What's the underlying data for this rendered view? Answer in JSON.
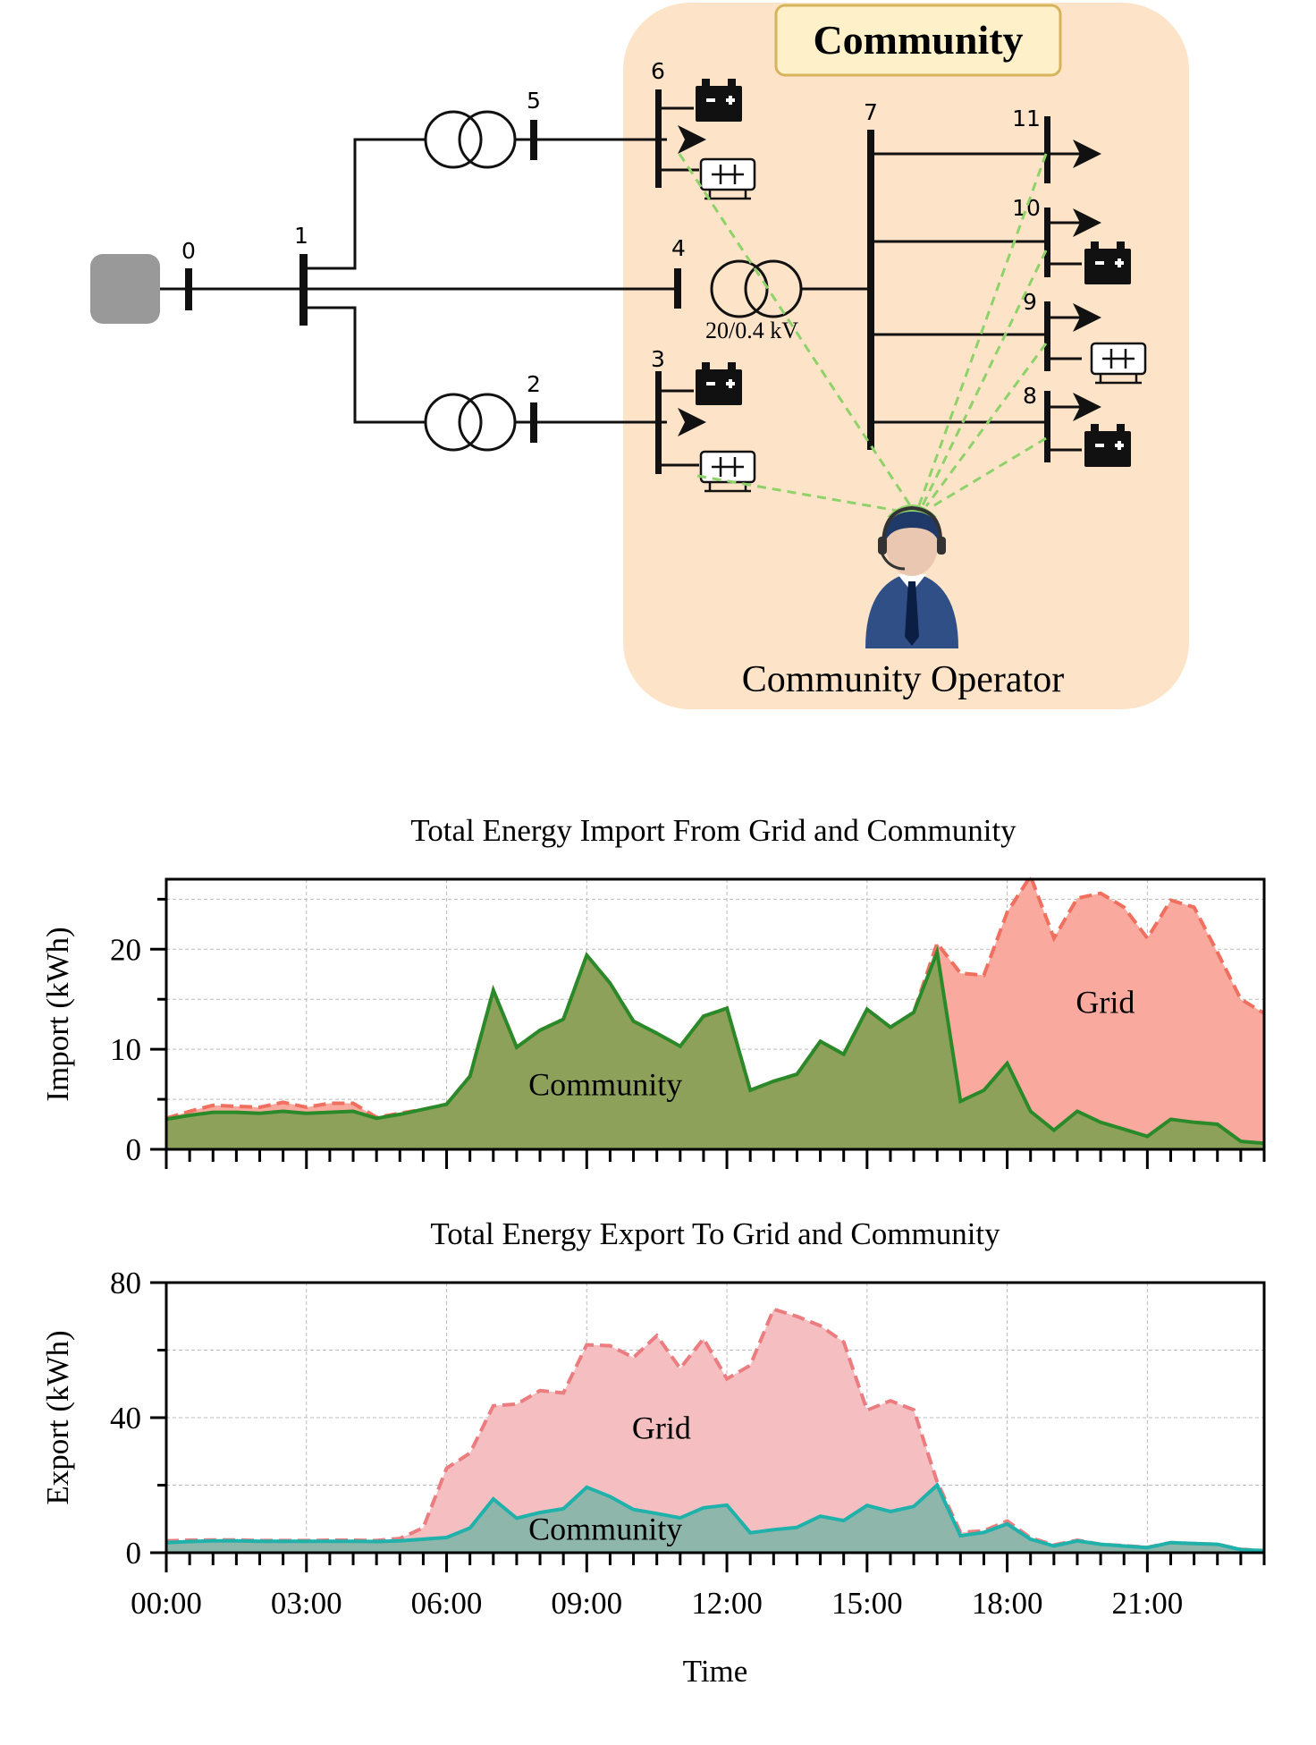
{
  "diagram": {
    "community_label": "Community",
    "operator_label": "Community Operator",
    "transformer_label": "20/0.4 kV",
    "bus_labels": [
      "0",
      "1",
      "2",
      "3",
      "4",
      "5",
      "6",
      "7",
      "8",
      "9",
      "10",
      "11"
    ],
    "colors": {
      "community_bg": "#fde3c7",
      "label_box_bg": "#fef1c9",
      "label_box_border": "#d6b45e",
      "comm_link": "#8fd26a",
      "grid_source": "#999999"
    }
  },
  "chart_data": [
    {
      "type": "area",
      "title": "Total Energy Import From Grid and Community",
      "ylabel": "Import (kWh)",
      "xlabel": "",
      "ylim": [
        0,
        27
      ],
      "yticks": [
        0,
        10,
        20
      ],
      "x_hours": [
        0,
        0.5,
        1,
        1.5,
        2,
        2.5,
        3,
        3.5,
        4,
        4.5,
        5,
        5.5,
        6,
        6.5,
        7,
        7.5,
        8,
        8.5,
        9,
        9.5,
        10,
        10.5,
        11,
        11.5,
        12,
        12.5,
        13,
        13.5,
        14,
        14.5,
        15,
        15.5,
        16,
        16.5,
        17,
        17.5,
        18,
        18.5,
        19,
        19.5,
        20,
        20.5,
        21,
        21.5,
        22,
        22.5,
        23,
        23.5
      ],
      "series": [
        {
          "name": "Grid",
          "color_line": "#f07060",
          "color_fill": "#f9a99e",
          "values": [
            3.1,
            3.8,
            4.4,
            4.3,
            4.2,
            4.7,
            4.2,
            4.6,
            4.6,
            3.2,
            3.6,
            4.0,
            4.5,
            7.3,
            15.9,
            10.2,
            11.9,
            13.0,
            19.4,
            16.6,
            12.8,
            11.6,
            10.3,
            13.3,
            14.1,
            5.9,
            6.8,
            7.5,
            10.8,
            9.5,
            14.0,
            12.2,
            13.7,
            20.6,
            17.6,
            17.4,
            23.7,
            27.3,
            21.1,
            25.1,
            25.6,
            24.2,
            21.1,
            24.9,
            24.2,
            19.7,
            15.0,
            13.6
          ]
        },
        {
          "name": "Community",
          "color_line": "#2a8a2a",
          "color_fill": "#8ea15b",
          "values": [
            3.0,
            3.4,
            3.7,
            3.7,
            3.6,
            3.8,
            3.6,
            3.7,
            3.8,
            3.1,
            3.5,
            4.0,
            4.5,
            7.3,
            15.9,
            10.2,
            11.9,
            13.0,
            19.4,
            16.6,
            12.8,
            11.6,
            10.3,
            13.3,
            14.1,
            5.9,
            6.8,
            7.5,
            10.8,
            9.5,
            14.0,
            12.2,
            13.7,
            19.7,
            4.8,
            5.9,
            8.6,
            3.8,
            1.9,
            3.8,
            2.7,
            2.0,
            1.3,
            3.0,
            2.7,
            2.5,
            0.8,
            0.6
          ]
        }
      ],
      "annotations": [
        {
          "text": "Community",
          "x": 9.4,
          "y": 6.5
        },
        {
          "text": "Grid",
          "x": 20.1,
          "y": 14.7
        }
      ]
    },
    {
      "type": "area",
      "title": "Total Energy Export To Grid and Community",
      "ylabel": "Export (kWh)",
      "xlabel": "Time",
      "ylim": [
        0,
        80
      ],
      "yticks": [
        0,
        40,
        80
      ],
      "xticks": [
        "00:00",
        "03:00",
        "06:00",
        "09:00",
        "12:00",
        "15:00",
        "18:00",
        "21:00"
      ],
      "x_hours": [
        0,
        0.5,
        1,
        1.5,
        2,
        2.5,
        3,
        3.5,
        4,
        4.5,
        5,
        5.5,
        6,
        6.5,
        7,
        7.5,
        8,
        8.5,
        9,
        9.5,
        10,
        10.5,
        11,
        11.5,
        12,
        12.5,
        13,
        13.5,
        14,
        14.5,
        15,
        15.5,
        16,
        16.5,
        17,
        17.5,
        18,
        18.5,
        19,
        19.5,
        20,
        20.5,
        21,
        21.5,
        22,
        22.5,
        23,
        23.5
      ],
      "series": [
        {
          "name": "Grid",
          "color_line": "#eb7d80",
          "color_fill": "#f5bfc1",
          "values": [
            3.5,
            3.7,
            3.8,
            3.8,
            3.6,
            3.6,
            3.6,
            3.7,
            3.7,
            3.6,
            4.2,
            7.4,
            25.0,
            29.5,
            43.5,
            44.0,
            48.0,
            47.3,
            61.6,
            61.3,
            57.8,
            64.3,
            54.6,
            63.4,
            51.5,
            55.5,
            72.1,
            70.0,
            67.2,
            62.4,
            42.2,
            45.0,
            42.3,
            21.0,
            6.0,
            6.5,
            9.4,
            4.4,
            2.3,
            3.7,
            2.5,
            2.1,
            1.6,
            3.0,
            2.7,
            2.5,
            1.0,
            0.6
          ]
        },
        {
          "name": "Community",
          "color_line": "#20b2aa",
          "color_fill": "#8fb6ab",
          "values": [
            3.0,
            3.3,
            3.5,
            3.5,
            3.4,
            3.4,
            3.4,
            3.4,
            3.4,
            3.3,
            3.5,
            4.0,
            4.5,
            7.3,
            15.9,
            10.2,
            11.9,
            13.0,
            19.4,
            16.6,
            12.8,
            11.6,
            10.3,
            13.3,
            14.1,
            5.9,
            6.8,
            7.5,
            10.8,
            9.5,
            14.0,
            12.2,
            13.7,
            20.0,
            5.0,
            6.0,
            8.5,
            4.0,
            2.0,
            3.5,
            2.5,
            2.0,
            1.5,
            3.0,
            2.7,
            2.5,
            0.9,
            0.6
          ]
        }
      ],
      "annotations": [
        {
          "text": "Grid",
          "x": 10.6,
          "y": 37
        },
        {
          "text": "Community",
          "x": 9.4,
          "y": 7
        }
      ]
    }
  ]
}
